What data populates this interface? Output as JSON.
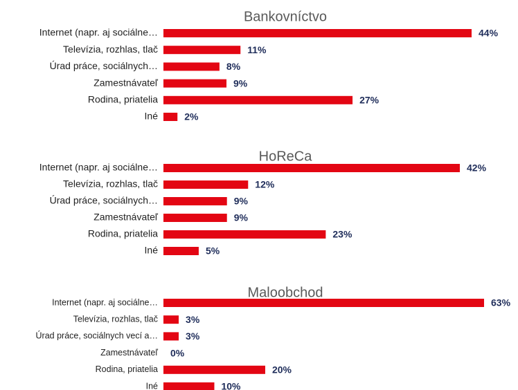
{
  "chart_data": [
    {
      "type": "bar",
      "orientation": "horizontal",
      "title": "Bankovníctvo",
      "categories": [
        "Internet (napr. aj sociálne…",
        "Televízia, rozhlas, tlač",
        "Úrad práce, sociálnych…",
        "Zamestnávateľ",
        "Rodina, priatelia",
        "Iné"
      ],
      "values": [
        44,
        11,
        8,
        9,
        27,
        2
      ],
      "value_labels": [
        "44%",
        "11%",
        "8%",
        "9%",
        "27%",
        "2%"
      ],
      "color": "#e30613"
    },
    {
      "type": "bar",
      "orientation": "horizontal",
      "title": "HoReCa",
      "categories": [
        "Internet (napr. aj sociálne…",
        "Televízia, rozhlas, tlač",
        "Úrad práce, sociálnych…",
        "Zamestnávateľ",
        "Rodina, priatelia",
        "Iné"
      ],
      "values": [
        42,
        12,
        9,
        9,
        23,
        5
      ],
      "value_labels": [
        "42%",
        "12%",
        "9%",
        "9%",
        "23%",
        "5%"
      ],
      "color": "#e30613"
    },
    {
      "type": "bar",
      "orientation": "horizontal",
      "title": "Maloobchod",
      "categories": [
        "Internet (napr. aj sociálne…",
        "Televízia, rozhlas, tlač",
        "Úrad práce, sociálnych vecí a…",
        "Zamestnávateľ",
        "Rodina, priatelia",
        "Iné"
      ],
      "values": [
        63,
        3,
        3,
        0,
        20,
        10
      ],
      "value_labels": [
        "63%",
        "3%",
        "3%",
        "0%",
        "20%",
        "10%"
      ],
      "color": "#e30613"
    }
  ]
}
